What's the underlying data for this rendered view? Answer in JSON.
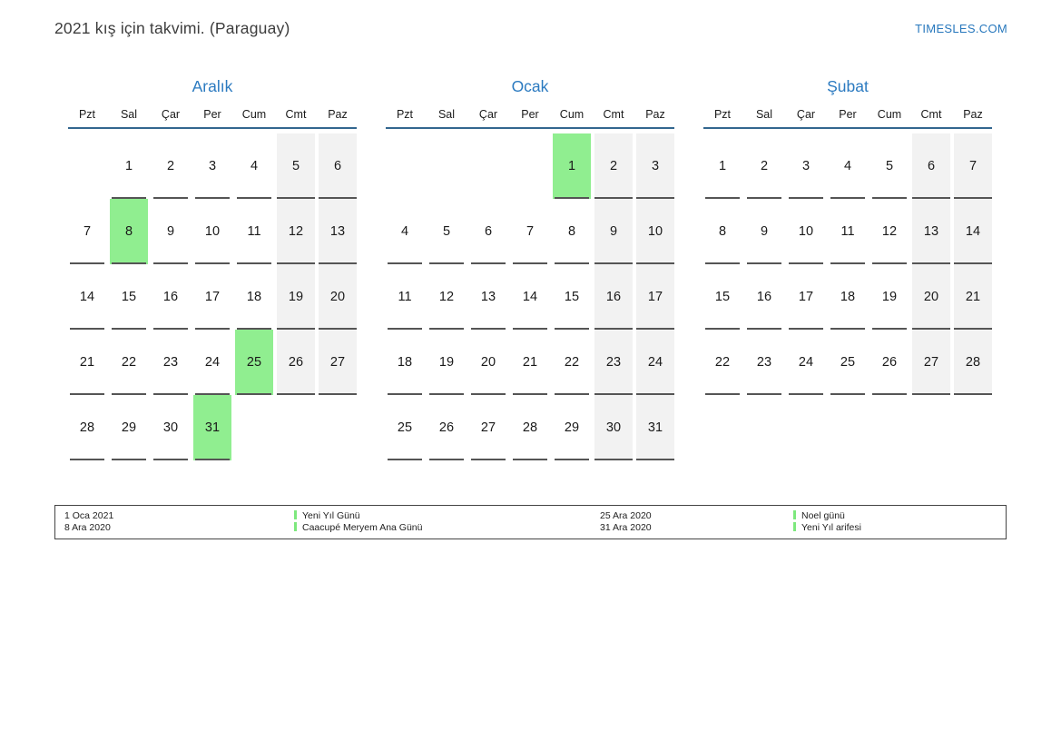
{
  "header": {
    "title": "2021 kış için takvimi. (Paraguay)",
    "site": "TIMESLES.COM"
  },
  "colors": {
    "accent_blue": "#2b7ac0",
    "header_rule_blue": "#33678f",
    "holiday_green": "#90ee90",
    "legend_bar_green": "#7de87d",
    "weekend_gray": "#f2f2f2",
    "underline_gray": "#555555"
  },
  "weekdays": [
    "Pzt",
    "Sal",
    "Çar",
    "Per",
    "Cum",
    "Cmt",
    "Paz"
  ],
  "months": [
    {
      "name": "Aralık",
      "weeks": [
        [
          null,
          1,
          2,
          3,
          4,
          5,
          6
        ],
        [
          7,
          8,
          9,
          10,
          11,
          12,
          13
        ],
        [
          14,
          15,
          16,
          17,
          18,
          19,
          20
        ],
        [
          21,
          22,
          23,
          24,
          25,
          26,
          27
        ],
        [
          28,
          29,
          30,
          31,
          null,
          null,
          null
        ]
      ],
      "holidays": [
        8,
        25,
        31
      ]
    },
    {
      "name": "Ocak",
      "weeks": [
        [
          null,
          null,
          null,
          null,
          1,
          2,
          3
        ],
        [
          4,
          5,
          6,
          7,
          8,
          9,
          10
        ],
        [
          11,
          12,
          13,
          14,
          15,
          16,
          17
        ],
        [
          18,
          19,
          20,
          21,
          22,
          23,
          24
        ],
        [
          25,
          26,
          27,
          28,
          29,
          30,
          31
        ]
      ],
      "holidays": [
        1
      ]
    },
    {
      "name": "Şubat",
      "weeks": [
        [
          1,
          2,
          3,
          4,
          5,
          6,
          7
        ],
        [
          8,
          9,
          10,
          11,
          12,
          13,
          14
        ],
        [
          15,
          16,
          17,
          18,
          19,
          20,
          21
        ],
        [
          22,
          23,
          24,
          25,
          26,
          27,
          28
        ]
      ],
      "holidays": []
    }
  ],
  "legend": {
    "columns": [
      {
        "entries": [
          {
            "date": "1 Oca 2021",
            "name": "Yeni Yıl Günü"
          },
          {
            "date": "8 Ara 2020",
            "name": "Caacupé Meryem Ana Günü"
          }
        ]
      },
      {
        "entries": [
          {
            "date": "25 Ara 2020",
            "name": "Noel günü"
          },
          {
            "date": "31 Ara 2020",
            "name": "Yeni Yıl arifesi"
          }
        ]
      }
    ]
  }
}
